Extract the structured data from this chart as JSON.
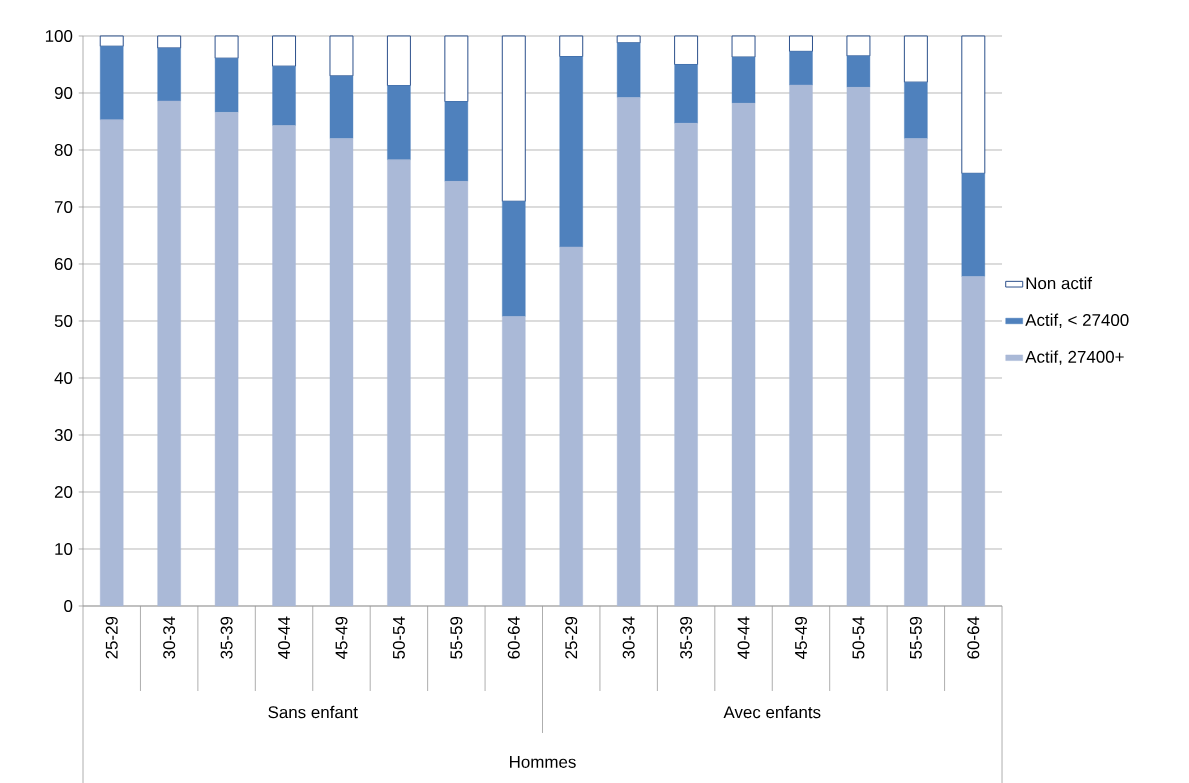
{
  "chart_data": {
    "type": "bar",
    "stacked": true,
    "categories": [
      "25-29",
      "30-34",
      "35-39",
      "40-44",
      "45-49",
      "50-54",
      "55-59",
      "60-64",
      "25-29",
      "30-34",
      "35-39",
      "40-44",
      "45-49",
      "50-54",
      "55-59",
      "60-64"
    ],
    "series": [
      {
        "name": "Actif, 27400+",
        "color": "#aab9d7",
        "values": [
          85.3,
          88.6,
          86.6,
          84.3,
          82,
          78.3,
          74.5,
          50.8,
          63,
          89.2,
          84.7,
          88.2,
          91.4,
          91,
          82,
          57.8
        ]
      },
      {
        "name": "Actif, < 27400",
        "color": "#4f81bd",
        "values": [
          12.9,
          9.3,
          9.5,
          10.4,
          11,
          13,
          14,
          20.2,
          33.4,
          9.6,
          10.3,
          8.1,
          5.9,
          5.5,
          9.9,
          18.1
        ]
      },
      {
        "name": "Non actif",
        "color": "#ffffff",
        "values": [
          1.8,
          2.1,
          3.9,
          5.3,
          7,
          8.7,
          11.5,
          29,
          3.6,
          1.2,
          5,
          3.7,
          2.7,
          3.5,
          8.1,
          24.1
        ]
      }
    ],
    "ylim": [
      0,
      100
    ],
    "yticks": [
      0,
      10,
      20,
      30,
      40,
      50,
      60,
      70,
      80,
      90,
      100
    ],
    "grid": "y",
    "legend": "right",
    "annotations": [
      "Sans enfant",
      "Avec enfants",
      "Hommes"
    ]
  }
}
